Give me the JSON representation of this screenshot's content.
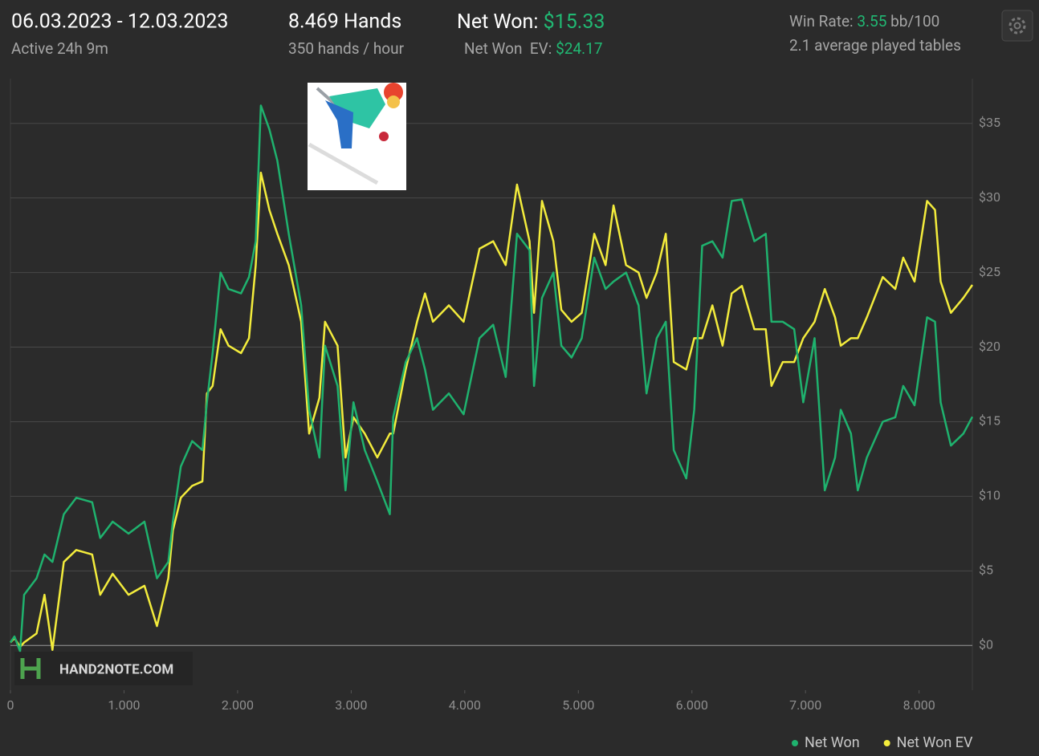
{
  "header": {
    "date_range": "06.03.2023 - 12.03.2023",
    "active": "Active 24h 9m",
    "hands": "8.469 Hands",
    "hands_per_hour": "350 hands / hour",
    "net_won_label": "Net Won:",
    "net_won": "$15.33",
    "net_won_ev_label": "Net Won  EV:",
    "net_won_ev": "$24.17",
    "win_rate_label": "Win Rate:",
    "win_rate": "3.55",
    "win_rate_unit": "bb/100",
    "tables": "2.1 average played tables"
  },
  "watermark": "HAND2NOTE.COM",
  "chart_data": {
    "type": "line",
    "x": [
      0,
      35,
      85,
      120,
      230,
      300,
      370,
      470,
      580,
      720,
      790,
      900,
      1040,
      1180,
      1290,
      1390,
      1430,
      1500,
      1600,
      1690,
      1730,
      1780,
      1850,
      1920,
      2030,
      2100,
      2160,
      2205,
      2280,
      2350,
      2450,
      2560,
      2630,
      2720,
      2770,
      2880,
      2950,
      3020,
      3120,
      3230,
      3340,
      3370,
      3480,
      3580,
      3650,
      3720,
      3860,
      3990,
      4130,
      4250,
      4360,
      4460,
      4570,
      4610,
      4680,
      4780,
      4850,
      4940,
      5030,
      5140,
      5240,
      5310,
      5420,
      5530,
      5600,
      5690,
      5770,
      5840,
      5950,
      6020,
      6090,
      6180,
      6270,
      6350,
      6440,
      6550,
      6650,
      6700,
      6800,
      6900,
      6980,
      7080,
      7170,
      7260,
      7310,
      7400,
      7460,
      7540,
      7680,
      7790,
      7860,
      7960,
      8070,
      8140,
      8190,
      8280,
      8390,
      8469
    ],
    "series": [
      {
        "name": "Net Won",
        "color": "#1fb26e",
        "values": [
          0.2,
          0.6,
          -0.4,
          3.4,
          4.5,
          6.1,
          5.6,
          8.8,
          9.9,
          9.6,
          7.2,
          8.3,
          7.5,
          8.3,
          4.5,
          5.6,
          8.3,
          12,
          13.7,
          13.1,
          16.3,
          19.6,
          25,
          23.9,
          23.6,
          24.7,
          27.1,
          36.2,
          34.6,
          32.5,
          27.6,
          22.8,
          15.8,
          12.6,
          20.1,
          17.4,
          10.4,
          16.3,
          13.1,
          11,
          8.8,
          15.3,
          19,
          20.6,
          18.5,
          15.8,
          16.9,
          15.5,
          20.6,
          21.5,
          18,
          27.6,
          26.5,
          17.4,
          23.3,
          25,
          20.1,
          19.3,
          20.6,
          26,
          23.9,
          24.4,
          25,
          22.8,
          16.9,
          20.6,
          21.7,
          13.1,
          11.2,
          15.8,
          26.8,
          27.1,
          26,
          29.8,
          29.9,
          27.1,
          27.6,
          21.7,
          21.7,
          21.2,
          16.3,
          20.6,
          10.4,
          12.6,
          15.8,
          14.2,
          10.4,
          12.6,
          15,
          15.3,
          17.4,
          16.1,
          22,
          21.7,
          16.3,
          13.4,
          14.2,
          15.33
        ]
      },
      {
        "name": "Net Won EV",
        "color": "#f3ec3c",
        "values": [
          0.2,
          0.5,
          -0.1,
          0.2,
          0.8,
          3.4,
          -0.3,
          5.6,
          6.4,
          6.1,
          3.4,
          4.8,
          3.4,
          4,
          1.3,
          4.5,
          7.7,
          9.9,
          10.7,
          11,
          16.9,
          17.4,
          21.2,
          20.1,
          19.6,
          20.6,
          25.5,
          31.7,
          29.2,
          27.6,
          25.5,
          21.7,
          14.2,
          16.6,
          21.7,
          20.1,
          12.6,
          15.3,
          14.2,
          12.6,
          14.2,
          14.2,
          18.5,
          21.7,
          23.6,
          21.7,
          22.8,
          21.7,
          26.6,
          27.1,
          25.5,
          30.9,
          27.1,
          22.3,
          29.8,
          27.1,
          22.5,
          21.7,
          22.3,
          27.6,
          25.5,
          29.5,
          25.5,
          25,
          23.3,
          25,
          27.6,
          19,
          18.5,
          20.6,
          20.6,
          22.8,
          20.1,
          23.6,
          24.1,
          21.2,
          21.2,
          17.4,
          19,
          19,
          20.6,
          21.7,
          23.9,
          22,
          20.1,
          20.6,
          20.6,
          22,
          24.7,
          23.9,
          26,
          24.4,
          29.8,
          29.2,
          24.4,
          22.3,
          23.3,
          24.17
        ]
      }
    ],
    "xlim": [
      0,
      8469
    ],
    "xticks": [
      0,
      {
        "value": 1000,
        "label": "1.000"
      },
      {
        "value": 2000,
        "label": "2.000"
      },
      {
        "value": 3000,
        "label": "3.000"
      },
      {
        "value": 4000,
        "label": "4.000"
      },
      {
        "value": 5000,
        "label": "5.000"
      },
      {
        "value": 6000,
        "label": "6.000"
      },
      {
        "value": 7000,
        "label": "7.000"
      },
      {
        "value": 8000,
        "label": "8.000"
      }
    ],
    "ylim": [
      -3,
      38
    ],
    "yticks": [
      {
        "value": 0,
        "label": "$0"
      },
      {
        "value": 5,
        "label": "$5"
      },
      {
        "value": 10,
        "label": "$10"
      },
      {
        "value": 15,
        "label": "$15"
      },
      {
        "value": 20,
        "label": "$20"
      },
      {
        "value": 25,
        "label": "$25"
      },
      {
        "value": 30,
        "label": "$30"
      },
      {
        "value": 35,
        "label": "$35"
      }
    ],
    "grid": true,
    "legend": "bottom-right"
  }
}
